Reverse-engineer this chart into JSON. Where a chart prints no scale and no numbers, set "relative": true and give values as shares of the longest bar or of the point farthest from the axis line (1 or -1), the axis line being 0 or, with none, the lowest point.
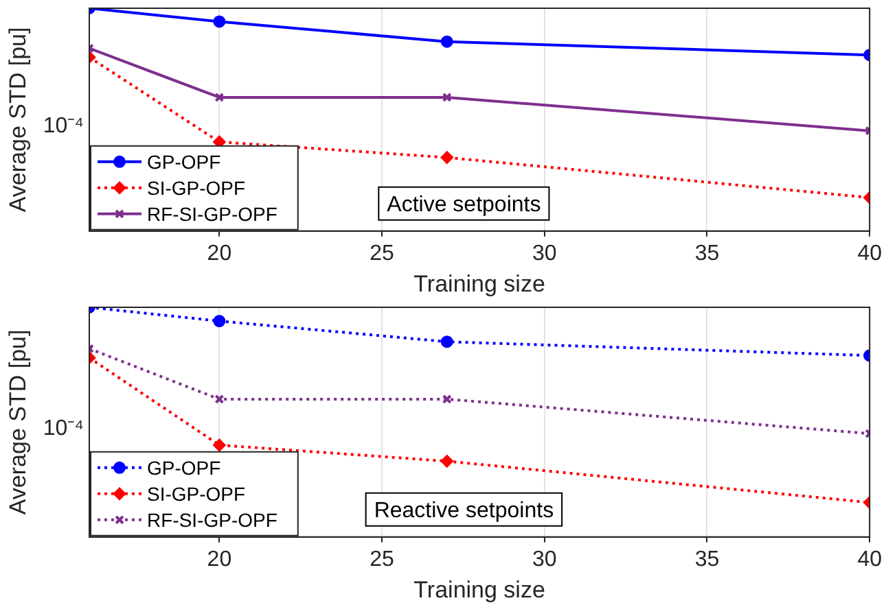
{
  "chart_data": [
    {
      "type": "line",
      "xlabel": "Training size",
      "ylabel": "Average STD [pu]",
      "x": [
        16,
        20,
        27,
        40
      ],
      "xlim": [
        16,
        40
      ],
      "xticks": [
        20,
        25,
        30,
        35,
        40
      ],
      "relative": true,
      "grid": "x",
      "legend": "bottom left",
      "annotations": [
        "Active setpoints",
        "10⁻⁴"
      ],
      "series": [
        {
          "name": "GP-OPF",
          "color": "#0000ff",
          "marker": "circle",
          "line_style": "solid",
          "values": [
            1,
            0.94,
            0.85,
            0.79
          ]
        },
        {
          "name": "SI-GP-OPF",
          "color": "#ff0000",
          "marker": "diamond",
          "line_style": "dotted",
          "values": [
            0.78,
            0.4,
            0.33,
            0.15
          ]
        },
        {
          "name": "RF-SI-GP-OPF",
          "color": "#7e2f8e",
          "marker": "cross",
          "line_style": "solid",
          "values": [
            0.82,
            0.6,
            0.6,
            0.45
          ]
        }
      ]
    },
    {
      "type": "line",
      "xlabel": "Training size",
      "ylabel": "Average STD [pu]",
      "x": [
        16,
        20,
        27,
        40
      ],
      "xlim": [
        16,
        40
      ],
      "xticks": [
        20,
        25,
        30,
        35,
        40
      ],
      "relative": true,
      "grid": "x",
      "legend": "bottom left",
      "annotations": [
        "Reactive setpoints",
        "10⁻⁴"
      ],
      "series": [
        {
          "name": "GP-OPF",
          "color": "#0000ff",
          "marker": "circle",
          "line_style": "dotted",
          "values": [
            1,
            0.94,
            0.85,
            0.79
          ]
        },
        {
          "name": "SI-GP-OPF",
          "color": "#ff0000",
          "marker": "diamond",
          "line_style": "dotted",
          "values": [
            0.78,
            0.4,
            0.33,
            0.15
          ]
        },
        {
          "name": "RF-SI-GP-OPF",
          "color": "#7e2f8e",
          "marker": "cross",
          "line_style": "dotted",
          "values": [
            0.82,
            0.6,
            0.6,
            0.45
          ]
        }
      ]
    }
  ]
}
